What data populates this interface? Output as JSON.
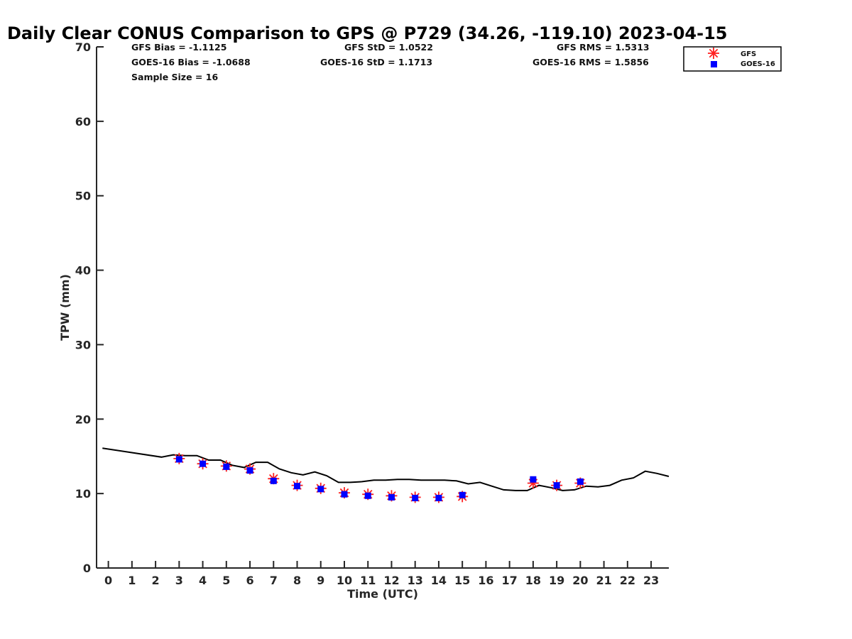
{
  "chart_data": {
    "type": "scatter",
    "title": "Daily Clear CONUS Comparison to GPS @ P729 (34.26, -119.10) 2023-04-15",
    "xlabel": "Time (UTC)",
    "ylabel": "TPW (mm)",
    "xlim": [
      -0.5,
      23.75
    ],
    "ylim": [
      0,
      70
    ],
    "x_ticks": [
      0,
      1,
      2,
      3,
      4,
      5,
      6,
      7,
      8,
      9,
      10,
      11,
      12,
      13,
      14,
      15,
      16,
      17,
      18,
      19,
      20,
      21,
      22,
      23
    ],
    "y_ticks": [
      0,
      10,
      20,
      30,
      40,
      50,
      60,
      70
    ],
    "grid": false,
    "legend_position": "top-right",
    "stats": [
      {
        "text": "GFS Bias = -1.1125"
      },
      {
        "text": "GFS StD = 1.0522"
      },
      {
        "text": "GFS RMS = 1.5313"
      },
      {
        "text": "GOES-16 Bias = -1.0688"
      },
      {
        "text": "GOES-16 StD = 1.1713"
      },
      {
        "text": "GOES-16 RMS = 1.5856"
      },
      {
        "text": "Sample Size = 16"
      }
    ],
    "series": [
      {
        "name": "",
        "type": "line",
        "color": "#000000",
        "x": [
          -0.25,
          2.25,
          2.75,
          3.25,
          3.75,
          4.25,
          4.75,
          5.25,
          5.75,
          6.25,
          6.75,
          7.25,
          7.75,
          8.25,
          8.75,
          9.25,
          9.75,
          10.25,
          10.75,
          11.25,
          11.75,
          12.25,
          12.75,
          13.25,
          13.75,
          14.25,
          14.75,
          15.25,
          15.75,
          16.25,
          16.75,
          17.25,
          17.75,
          18.25,
          18.75,
          19.25,
          19.75,
          20.25,
          20.75,
          21.25,
          21.75,
          22.25,
          22.75,
          23.25,
          23.75
        ],
        "y": [
          16.1,
          14.9,
          15.2,
          15.1,
          15.1,
          14.5,
          14.5,
          13.8,
          13.5,
          14.2,
          14.2,
          13.3,
          12.8,
          12.5,
          12.9,
          12.4,
          11.5,
          11.5,
          11.6,
          11.8,
          11.8,
          11.9,
          11.9,
          11.8,
          11.8,
          11.8,
          11.7,
          11.3,
          11.5,
          11.0,
          10.5,
          10.4,
          10.4,
          11.1,
          10.8,
          10.4,
          10.5,
          11.0,
          10.9,
          11.1,
          11.8,
          12.1,
          13.0,
          12.7,
          12.3
        ]
      },
      {
        "name": "GFS",
        "type": "scatter",
        "marker": "asterisk",
        "color": "#ff2020",
        "x": [
          3,
          4,
          5,
          6,
          7,
          8,
          9,
          10,
          11,
          12,
          13,
          14,
          15,
          18,
          19,
          20
        ],
        "y": [
          14.7,
          14.0,
          13.7,
          13.3,
          12.0,
          11.1,
          10.7,
          10.1,
          9.9,
          9.7,
          9.5,
          9.5,
          9.6,
          11.4,
          11.1,
          11.4
        ]
      },
      {
        "name": "GOES-16",
        "type": "scatter",
        "marker": "square",
        "color": "#0000ff",
        "x": [
          3,
          4,
          5,
          6,
          7,
          8,
          9,
          10,
          11,
          12,
          13,
          14,
          15,
          18,
          19,
          20
        ],
        "y": [
          14.6,
          14.0,
          13.6,
          13.1,
          11.7,
          11.0,
          10.6,
          9.9,
          9.7,
          9.5,
          9.4,
          9.4,
          9.8,
          11.9,
          11.1,
          11.6
        ]
      }
    ]
  }
}
